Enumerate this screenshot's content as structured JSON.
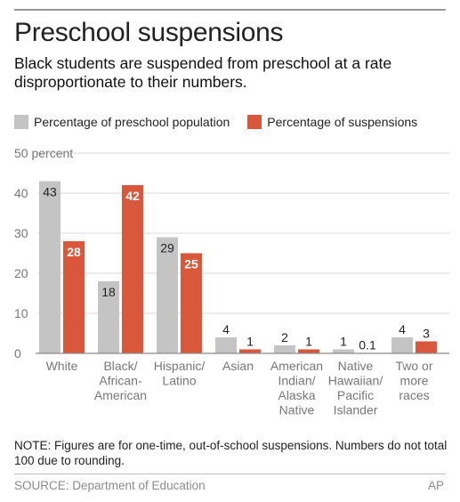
{
  "title": "Preschool suspensions",
  "subtitle": "Black students are suspended from preschool at a rate disproportionate to their numbers.",
  "note": "NOTE: Figures are for one-time, out-of-school suspensions. Numbers do not total 100 due to rounding.",
  "source": "SOURCE: Department of Education",
  "credit": "AP",
  "colors": {
    "population": "#c4c4c4",
    "suspensions": "#d9573a",
    "grid": "#d8d8d8",
    "axis": "#8a8a8a"
  },
  "chart_data": {
    "type": "bar",
    "y_unit_label": "50 percent",
    "ylim": [
      0,
      50
    ],
    "y_ticks": [
      0,
      10,
      20,
      30,
      40,
      50
    ],
    "grid": true,
    "legend_position": "top-left",
    "categories": [
      [
        "White"
      ],
      [
        "Black/",
        "African-",
        "American"
      ],
      [
        "Hispanic/",
        "Latino"
      ],
      [
        "Asian"
      ],
      [
        "American",
        "Indian/",
        "Alaska",
        "Native"
      ],
      [
        "Native",
        "Hawaiian/",
        "Pacific",
        "Islander"
      ],
      [
        "Two or",
        "more",
        "races"
      ]
    ],
    "series": [
      {
        "name": "Percentage of preschool population",
        "values": [
          43,
          18,
          29,
          4,
          2,
          1,
          4
        ],
        "labels": [
          "43",
          "18",
          "29",
          "4",
          "2",
          "1",
          "4"
        ]
      },
      {
        "name": "Percentage of suspensions",
        "values": [
          28,
          42,
          25,
          1,
          1,
          0.1,
          3
        ],
        "labels": [
          "28",
          "42",
          "25",
          "1",
          "1",
          "0.1",
          "3"
        ]
      }
    ]
  }
}
